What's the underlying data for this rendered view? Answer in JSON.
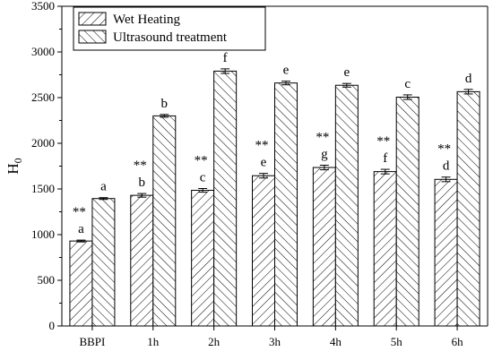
{
  "chart_data": {
    "type": "bar",
    "categories": [
      "BBPI",
      "1h",
      "2h",
      "3h",
      "4h",
      "5h",
      "6h"
    ],
    "series": [
      {
        "name": "Wet Heating",
        "values": [
          930,
          1430,
          1485,
          1645,
          1735,
          1690,
          1605
        ],
        "errors": [
          10,
          20,
          20,
          25,
          25,
          25,
          25
        ],
        "letters": [
          "a",
          "b",
          "c",
          "e",
          "g",
          "f",
          "d"
        ],
        "sig": [
          "**",
          "**",
          "**",
          "**",
          "**",
          "**",
          "**"
        ]
      },
      {
        "name": "Ultrasound treatment",
        "values": [
          1395,
          2300,
          2790,
          2660,
          2635,
          2505,
          2565
        ],
        "errors": [
          10,
          15,
          25,
          20,
          20,
          25,
          25
        ],
        "letters": [
          "a",
          "b",
          "f",
          "e",
          "e",
          "c",
          "d"
        ]
      }
    ],
    "ylabel": "H",
    "ylabel_sub": "0",
    "ylim": [
      0,
      3500
    ],
    "yticks": [
      "0",
      "500",
      "1000",
      "1500",
      "2000",
      "2500",
      "3000",
      "3500"
    ],
    "legend_position": "top-left",
    "grid": false
  }
}
